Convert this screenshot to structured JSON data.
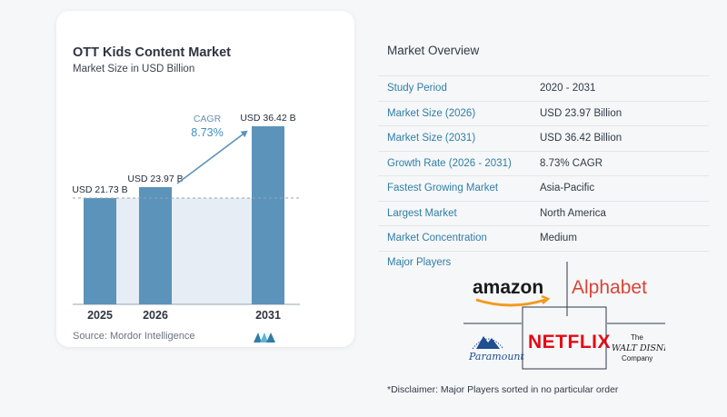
{
  "chart_data": {
    "type": "bar",
    "title": "OTT Kids Content Market",
    "subtitle": "Market Size in USD Billion",
    "categories": [
      "2025",
      "2026",
      "2031"
    ],
    "values": [
      21.73,
      23.97,
      36.42
    ],
    "value_labels": [
      "USD 21.73 B",
      "USD 23.97 B",
      "USD 36.42 B"
    ],
    "cagr_label": "CAGR",
    "cagr_value": "8.73%",
    "bar_color": "#5b93ba",
    "grid": false
  },
  "source": "Source:  Mordor Intelligence",
  "overview": {
    "title": "Market Overview",
    "rows": [
      {
        "key": "Study Period",
        "value": "2020 - 2031"
      },
      {
        "key": "Market Size (2026)",
        "value": "USD 23.97 Billion"
      },
      {
        "key": "Market Size (2031)",
        "value": "USD 36.42 Billion"
      },
      {
        "key": "Growth Rate (2026 - 2031)",
        "value": "8.73% CAGR"
      },
      {
        "key": "Fastest Growing Market",
        "value": "Asia-Pacific"
      },
      {
        "key": "Largest Market",
        "value": "North America"
      },
      {
        "key": "Market Concentration",
        "value": "Medium"
      }
    ]
  },
  "players": {
    "title": "Major Players",
    "logos": {
      "amazon": "amazon",
      "alphabet": "Alphabet",
      "paramount": "Paramount",
      "netflix": "NETFLIX",
      "disney_the": "The",
      "disney_walt": "WALT DISNEY",
      "disney_company": "Company"
    }
  },
  "disclaimer": "*Disclaimer: Major Players sorted in no particular order",
  "colors": {
    "accent": "#2f7ea6",
    "bar": "#5b93ba",
    "netflix": "#e50914",
    "alphabet": "#db4437"
  }
}
